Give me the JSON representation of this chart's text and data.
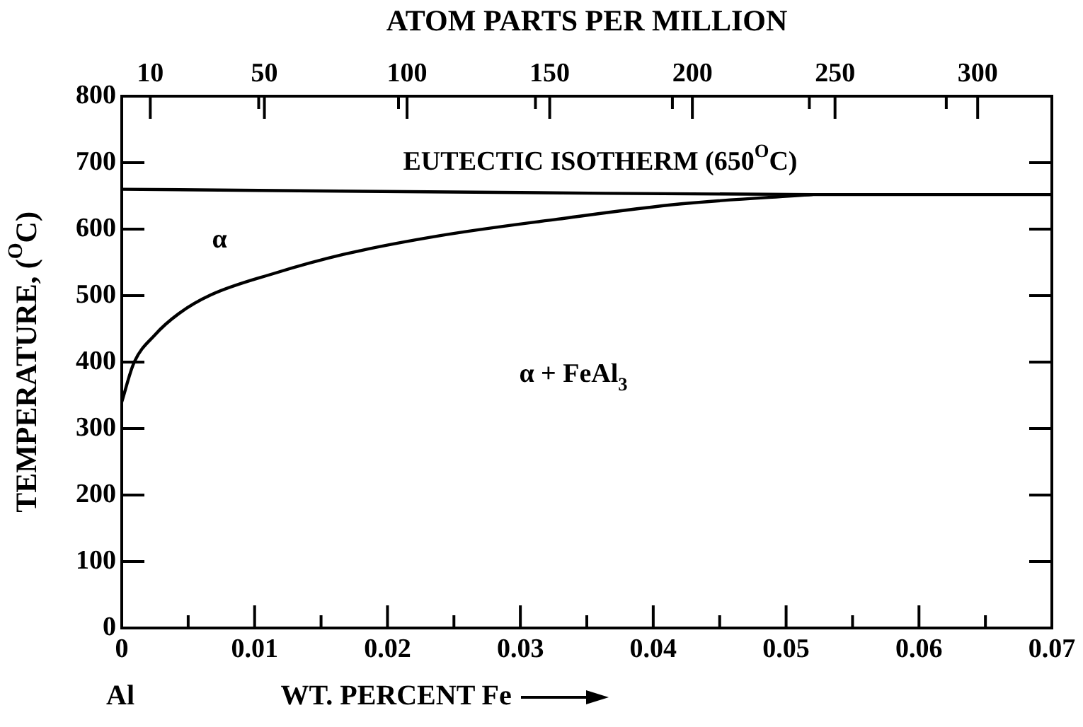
{
  "chart_data": {
    "type": "line",
    "x2label": "ATOM PARTS PER MILLION",
    "ylabel": "TEMPERATURE, ($^{O}$C)",
    "xlabel": "WT. PERCENT Fe",
    "xlim": [
      0,
      0.07
    ],
    "xticks": [
      0,
      {
        "value": 0.005,
        "label": null
      },
      0.01,
      {
        "value": 0.015,
        "label": null
      },
      0.02,
      {
        "value": 0.025,
        "label": null
      },
      0.03,
      {
        "value": 0.035,
        "label": null
      },
      0.04,
      {
        "value": 0.045,
        "label": null
      },
      0.05,
      {
        "value": 0.055,
        "label": null
      },
      0.06,
      {
        "value": 0.065,
        "label": null
      },
      0.07
    ],
    "x2lim": [
      0,
      326
    ],
    "x2ticks": [
      10,
      {
        "value": 48,
        "label": null
      },
      50,
      {
        "value": 97,
        "label": null
      },
      100,
      {
        "value": 145,
        "label": null
      },
      150,
      {
        "value": 193,
        "label": null
      },
      200,
      {
        "value": 241,
        "label": null
      },
      250,
      {
        "value": 289,
        "label": null
      },
      300
    ],
    "ylim": [
      0,
      800
    ],
    "yticks": [
      0,
      100,
      200,
      300,
      400,
      500,
      600,
      700,
      800
    ],
    "grid": false,
    "legend": false,
    "marker": "none",
    "line_style": "solid",
    "series": [
      {
        "color": "#000000",
        "x": [
          0,
          0.03,
          0.052,
          0.07
        ],
        "values": [
          660,
          655,
          652,
          652
        ]
      },
      {
        "color": "#000000",
        "x": [
          0,
          0.0009,
          0.0025,
          0.0043,
          0.0067,
          0.0114,
          0.0167,
          0.0239,
          0.0328,
          0.0421,
          0.052
        ],
        "values": [
          340,
          398,
          441,
          473,
          501,
          533,
          562,
          590,
          615,
          638,
          652
        ]
      }
    ],
    "annotations": [
      "EUTECTIC ISOTHERM (650$^{O}$C)",
      "α",
      "α + FeAl$_{3}$",
      "Al"
    ]
  }
}
